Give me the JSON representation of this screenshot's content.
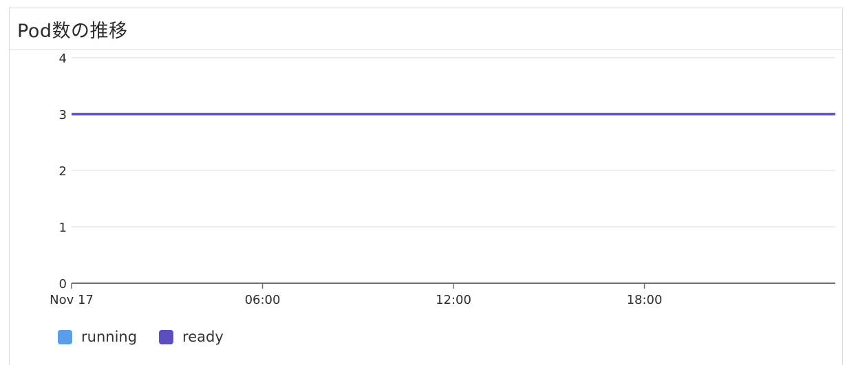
{
  "panel": {
    "title": "Pod数の推移"
  },
  "chart_data": {
    "type": "line",
    "title": "Pod数の推移",
    "x": [
      "Nov 17 00:00",
      "Nov 17 24:00"
    ],
    "x_tick_labels": [
      "Nov 17",
      "06:00",
      "12:00",
      "18:00"
    ],
    "x_tick_hours": [
      0,
      6,
      12,
      18
    ],
    "x_range_hours": [
      0,
      24
    ],
    "y_tick_labels": [
      "0",
      "1",
      "2",
      "3",
      "4"
    ],
    "ylim": [
      0,
      4
    ],
    "grid": true,
    "legend_position": "bottom-left",
    "series": [
      {
        "name": "running",
        "color": "#5b9ee8",
        "values": [
          3,
          3
        ]
      },
      {
        "name": "ready",
        "color": "#5b4fbe",
        "values": [
          3,
          3
        ]
      }
    ]
  }
}
